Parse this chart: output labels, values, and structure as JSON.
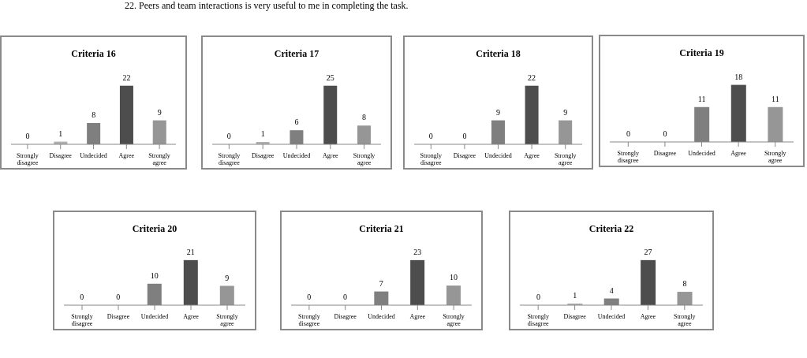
{
  "chart_data": [
    {
      "type": "other",
      "annotations": [
        "22.  Peers and team interactions is very useful to me in completing the task."
      ]
    },
    {
      "type": "bar",
      "title": "Criteria 16",
      "categories": [
        "Strongly disagree",
        "Disagree",
        "Undecided",
        "Agree",
        "Strongly agree"
      ],
      "values": [
        0,
        1,
        8,
        22,
        9
      ],
      "colors": [
        "#b0b0b0",
        "#b0b0b0",
        "#7f7f7f",
        "#4d4d4d",
        "#969696"
      ],
      "data_labels": true
    },
    {
      "type": "bar",
      "title": "Criteria 17",
      "categories": [
        "Strongly disagree",
        "Disagree",
        "Undecided",
        "Agree",
        "Strongly agree"
      ],
      "values": [
        0,
        1,
        6,
        25,
        8
      ],
      "colors": [
        "#b0b0b0",
        "#b0b0b0",
        "#7f7f7f",
        "#4d4d4d",
        "#969696"
      ],
      "data_labels": true
    },
    {
      "type": "bar",
      "title": "Criteria 18",
      "categories": [
        "Strongly disagree",
        "Disagree",
        "Undecided",
        "Agree",
        "Strongly agree"
      ],
      "values": [
        0,
        0,
        9,
        22,
        9
      ],
      "colors": [
        "#b0b0b0",
        "#b0b0b0",
        "#7f7f7f",
        "#4d4d4d",
        "#969696"
      ],
      "data_labels": true
    },
    {
      "type": "bar",
      "title": "Criteria 19",
      "categories": [
        "Strongly disagree",
        "Disagree",
        "Undecided",
        "Agree",
        "Strongly agree"
      ],
      "values": [
        0,
        0,
        11,
        18,
        11
      ],
      "colors": [
        "#b0b0b0",
        "#b0b0b0",
        "#7f7f7f",
        "#4d4d4d",
        "#969696"
      ],
      "data_labels": true
    },
    {
      "type": "bar",
      "title": "Criteria 20",
      "categories": [
        "Strongly disagree",
        "Disagree",
        "Undecided",
        "Agree",
        "Strongly agree"
      ],
      "values": [
        0,
        0,
        10,
        21,
        9
      ],
      "colors": [
        "#b0b0b0",
        "#b0b0b0",
        "#7f7f7f",
        "#4d4d4d",
        "#969696"
      ],
      "data_labels": true
    },
    {
      "type": "bar",
      "title": "Criteria 21",
      "categories": [
        "Strongly disagree",
        "Disagree",
        "Undecided",
        "Agree",
        "Strongly agree"
      ],
      "values": [
        0,
        0,
        7,
        23,
        10
      ],
      "colors": [
        "#b0b0b0",
        "#b0b0b0",
        "#7f7f7f",
        "#4d4d4d",
        "#969696"
      ],
      "data_labels": true
    },
    {
      "type": "bar",
      "title": "Criteria 22",
      "categories": [
        "Strongly disagree",
        "Disagree",
        "Undecided",
        "Agree",
        "Strongly agree"
      ],
      "values": [
        0,
        1,
        4,
        27,
        8
      ],
      "colors": [
        "#b0b0b0",
        "#b0b0b0",
        "#7f7f7f",
        "#4d4d4d",
        "#969696"
      ],
      "data_labels": true
    }
  ]
}
